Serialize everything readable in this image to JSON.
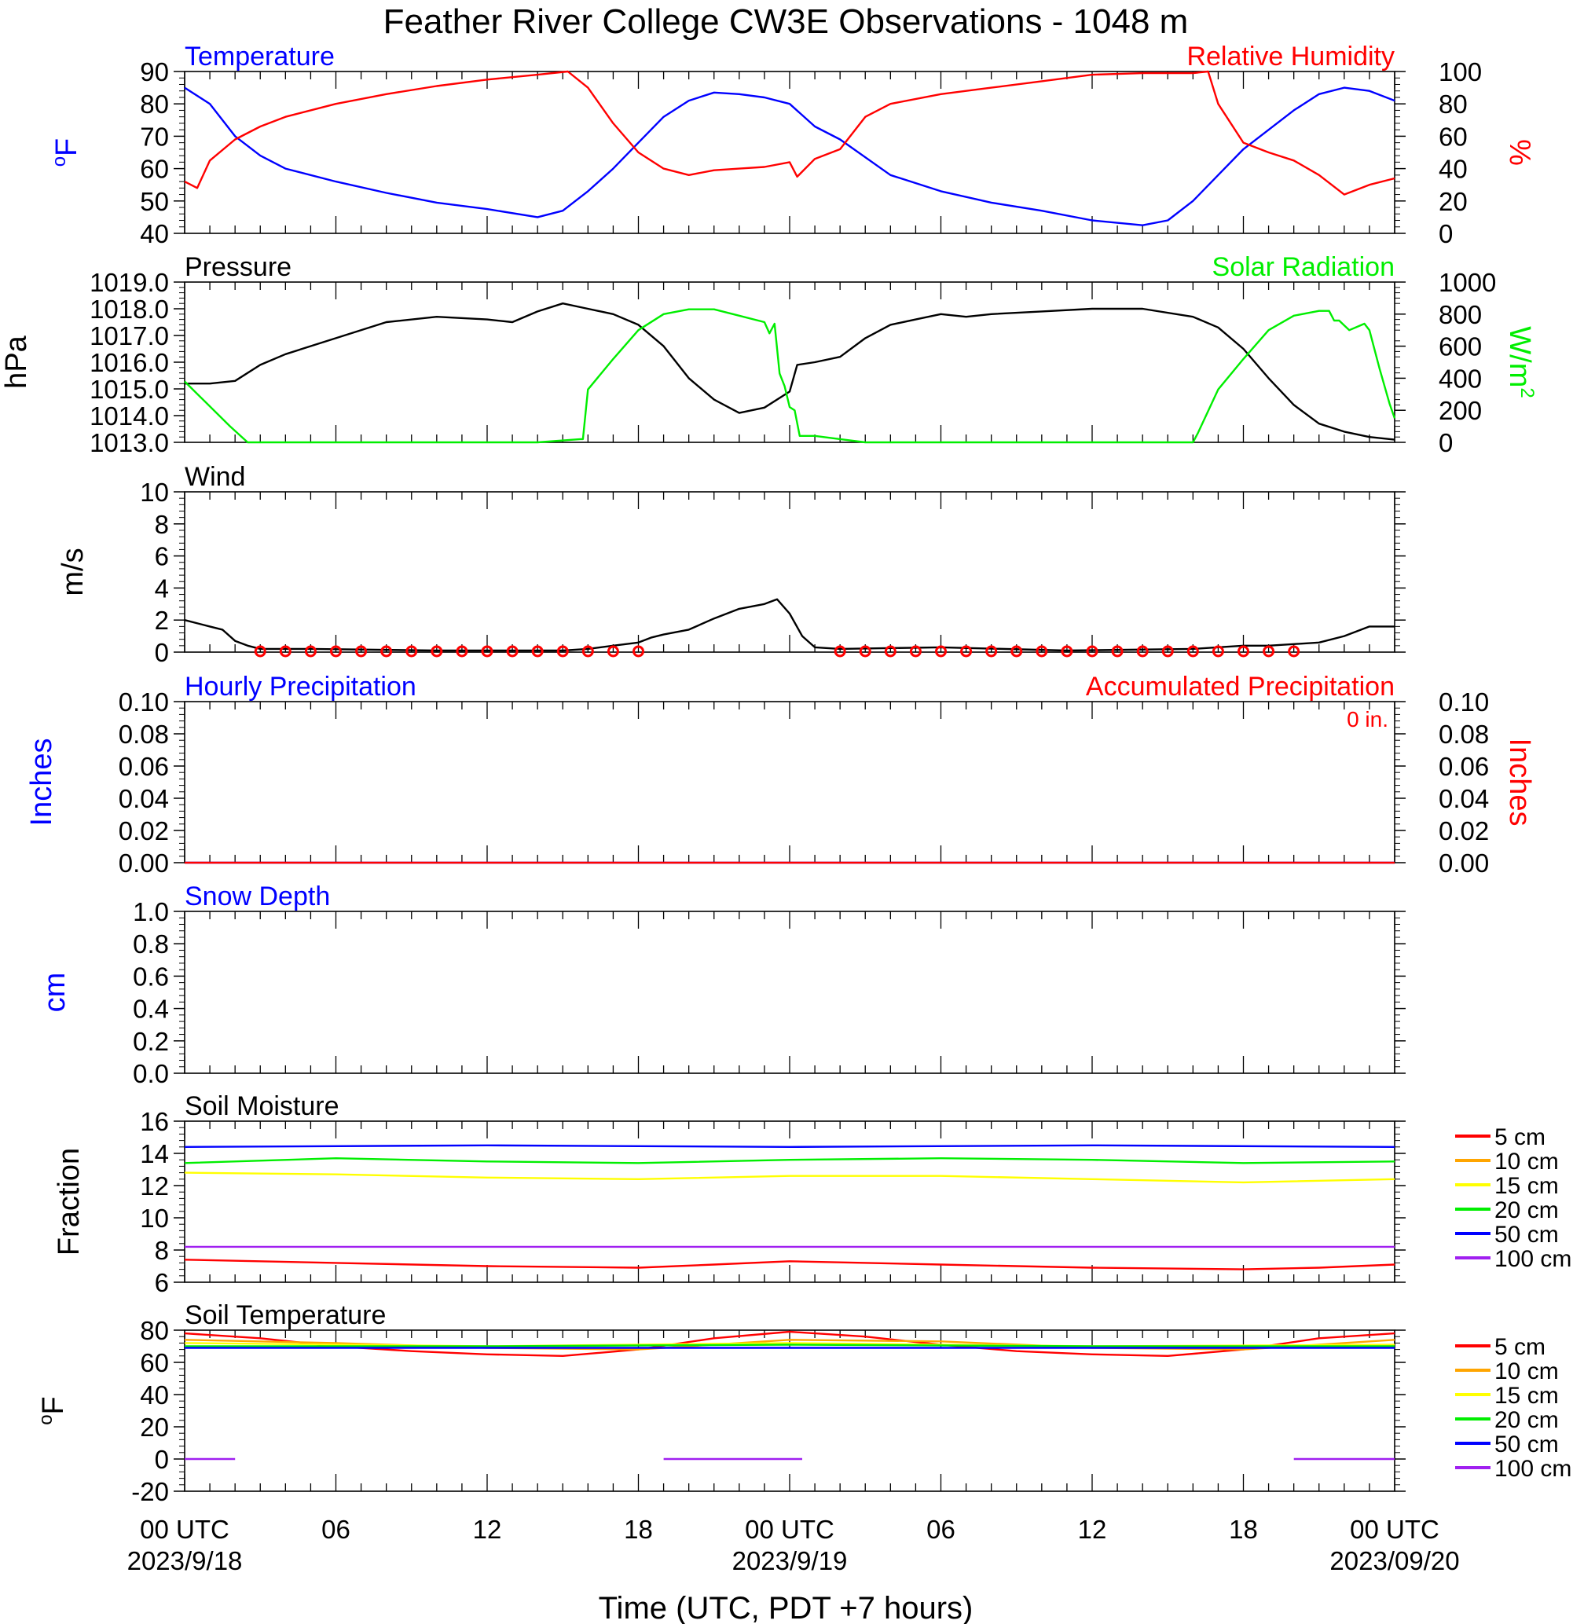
{
  "title": "Feather River College CW3E Observations - 1048 m",
  "x_axis": {
    "label": "Time (UTC, PDT +7 hours)",
    "range_hours": [
      0,
      48
    ],
    "ticks": [
      {
        "h": 0,
        "text": "00 UTC",
        "date": "2023/9/18"
      },
      {
        "h": 6,
        "text": "06",
        "date": ""
      },
      {
        "h": 12,
        "text": "12",
        "date": ""
      },
      {
        "h": 18,
        "text": "18",
        "date": ""
      },
      {
        "h": 24,
        "text": "00 UTC",
        "date": "2023/9/19"
      },
      {
        "h": 30,
        "text": "06",
        "date": ""
      },
      {
        "h": 36,
        "text": "12",
        "date": ""
      },
      {
        "h": 42,
        "text": "18",
        "date": ""
      },
      {
        "h": 48,
        "text": "00 UTC",
        "date": "2023/09/20"
      }
    ]
  },
  "colors": {
    "blue": "#0000ff",
    "red": "#ff0000",
    "green": "#00ee00",
    "black": "#000000",
    "orange": "#ffa500",
    "yellow": "#ffff00",
    "purple": "#a020f0"
  },
  "soil_legend": [
    {
      "label": "5 cm",
      "color": "#ff0000"
    },
    {
      "label": "10 cm",
      "color": "#ffa500"
    },
    {
      "label": "15 cm",
      "color": "#ffff00"
    },
    {
      "label": "20 cm",
      "color": "#00ee00"
    },
    {
      "label": "50 cm",
      "color": "#0000ff"
    },
    {
      "label": "100 cm",
      "color": "#a020f0"
    }
  ],
  "chart_data": [
    {
      "type": "line",
      "title_left": "Temperature",
      "title_right": "Relative Humidity",
      "ylabel_left": "oF",
      "ylabel_right": "%",
      "ylim_left": [
        40,
        90
      ],
      "ylim_right": [
        0,
        100
      ],
      "yticks_left": [
        "40",
        "50",
        "60",
        "70",
        "80",
        "90"
      ],
      "yticks_right": [
        "0",
        "20",
        "40",
        "60",
        "80",
        "100"
      ],
      "series": [
        {
          "name": "Temperature",
          "axis": "left",
          "color": "#0000ff",
          "x": [
            0,
            1,
            2,
            3,
            4,
            6,
            8,
            10,
            12,
            14,
            15,
            16,
            17,
            18,
            19,
            20,
            21,
            22,
            23,
            24,
            25,
            26,
            28,
            30,
            32,
            34,
            36,
            38,
            39,
            40,
            41,
            42,
            43,
            44,
            45,
            46,
            47,
            48
          ],
          "y": [
            85,
            80,
            70,
            64,
            60,
            56,
            52.5,
            49.5,
            47.5,
            45,
            47,
            53,
            60,
            68,
            76,
            81,
            83.5,
            83,
            82,
            80,
            73,
            69,
            58,
            53,
            49.5,
            47,
            44,
            42.5,
            44,
            50,
            58,
            66,
            72,
            78,
            83,
            85,
            84,
            81
          ]
        },
        {
          "name": "Relative Humidity",
          "axis": "right",
          "color": "#ff0000",
          "x": [
            0,
            0.5,
            1,
            2,
            3,
            4,
            6,
            8,
            10,
            12,
            14,
            15.2,
            16,
            17,
            18,
            19,
            20,
            21,
            22,
            23,
            24,
            24.3,
            25,
            26,
            27,
            28,
            30,
            32,
            34,
            36,
            38,
            39,
            40,
            40.6,
            41,
            42,
            43,
            44,
            45,
            46,
            47,
            48
          ],
          "y": [
            32,
            28,
            45,
            58,
            66,
            72,
            80,
            86,
            91,
            95,
            98,
            100,
            90,
            68,
            50,
            40,
            36,
            39,
            40,
            41,
            44,
            35,
            46,
            52,
            72,
            80,
            86,
            90,
            94,
            98,
            99,
            99,
            99,
            100,
            80,
            56,
            50,
            45,
            36,
            24,
            30,
            34
          ]
        }
      ]
    },
    {
      "type": "line",
      "title_left": "Pressure",
      "title_right": "Solar Radiation",
      "ylabel_left": "hPa",
      "ylabel_right": "W/m2",
      "ylim_left": [
        1013,
        1019
      ],
      "ylim_right": [
        0,
        1000
      ],
      "yticks_left": [
        "1013.0",
        "1014.0",
        "1015.0",
        "1016.0",
        "1017.0",
        "1018.0",
        "1019.0"
      ],
      "yticks_right": [
        "0",
        "200",
        "400",
        "600",
        "800",
        "1000"
      ],
      "series": [
        {
          "name": "Pressure",
          "axis": "left",
          "color": "#000000",
          "x": [
            0,
            1,
            2,
            3,
            4,
            6,
            8,
            10,
            12,
            13,
            14,
            15,
            16,
            17,
            18,
            19,
            20,
            21,
            22,
            23,
            24,
            24.3,
            25,
            26,
            27,
            28,
            29,
            30,
            31,
            32,
            34,
            36,
            38,
            40,
            41,
            42,
            43,
            44,
            45,
            46,
            47,
            48
          ],
          "y": [
            1015.2,
            1015.2,
            1015.3,
            1015.9,
            1016.3,
            1016.9,
            1017.5,
            1017.7,
            1017.6,
            1017.5,
            1017.9,
            1018.2,
            1018.0,
            1017.8,
            1017.4,
            1016.6,
            1015.4,
            1014.6,
            1014.1,
            1014.3,
            1014.9,
            1015.9,
            1016.0,
            1016.2,
            1016.9,
            1017.4,
            1017.6,
            1017.8,
            1017.7,
            1017.8,
            1017.9,
            1018.0,
            1018.0,
            1017.7,
            1017.3,
            1016.5,
            1015.4,
            1014.4,
            1013.7,
            1013.4,
            1013.2,
            1013.1
          ]
        },
        {
          "name": "Solar Radiation",
          "axis": "right",
          "color": "#00ee00",
          "x": [
            0,
            1.8,
            2.5,
            10,
            14,
            15.7,
            15.8,
            16,
            17,
            18,
            19,
            20,
            21,
            22,
            23,
            23.2,
            23.4,
            23.6,
            23.8,
            24,
            24.2,
            24.4,
            25,
            26,
            27,
            40,
            40.2,
            41,
            42,
            43,
            44,
            45,
            45.4,
            45.5,
            45.6,
            45.8,
            46,
            46.2,
            46.5,
            46.8,
            47,
            47.4,
            47.8,
            48
          ],
          "y": [
            380,
            100,
            0,
            0,
            0,
            20,
            20,
            330,
            520,
            700,
            800,
            830,
            830,
            790,
            750,
            680,
            740,
            430,
            350,
            220,
            200,
            40,
            40,
            20,
            0,
            0,
            60,
            330,
            520,
            700,
            790,
            820,
            820,
            790,
            760,
            760,
            730,
            700,
            720,
            740,
            700,
            460,
            240,
            150
          ]
        }
      ]
    },
    {
      "type": "line",
      "title_left": "Wind",
      "ylabel_left": "m/s",
      "ylim_left": [
        0,
        10
      ],
      "yticks_left": [
        "0",
        "2",
        "4",
        "6",
        "8",
        "10"
      ],
      "series": [
        {
          "name": "Wind Speed",
          "axis": "left",
          "color": "#000000",
          "x": [
            0,
            1,
            1.5,
            2,
            2.5,
            3,
            5,
            10,
            15,
            16,
            17,
            18,
            18.5,
            19,
            20,
            21,
            22,
            23,
            23.5,
            24,
            24.5,
            25,
            26,
            30,
            35,
            40,
            42,
            43,
            44,
            45,
            46,
            47,
            48
          ],
          "y": [
            2,
            1.6,
            1.4,
            0.7,
            0.4,
            0.2,
            0.2,
            0.1,
            0.1,
            0.2,
            0.4,
            0.6,
            0.9,
            1.1,
            1.4,
            2.1,
            2.7,
            3.0,
            3.3,
            2.4,
            1.0,
            0.3,
            0.2,
            0.3,
            0.1,
            0.2,
            0.4,
            0.4,
            0.5,
            0.6,
            1.0,
            1.6,
            1.6
          ]
        }
      ]
    },
    {
      "type": "line",
      "title_left": "Hourly Precipitation",
      "title_right": "Accumulated Precipitation",
      "annotation": "0 in.",
      "ylabel_left": "Inches",
      "ylabel_right": "Inches",
      "ylim_left": [
        0,
        0.1
      ],
      "ylim_right": [
        0,
        0.1
      ],
      "yticks_left": [
        "0.00",
        "0.02",
        "0.04",
        "0.06",
        "0.08",
        "0.10"
      ],
      "yticks_right": [
        "0.00",
        "0.02",
        "0.04",
        "0.06",
        "0.08",
        "0.10"
      ],
      "series": [
        {
          "name": "Hourly Precipitation",
          "axis": "left",
          "color": "#0000ff",
          "x": [
            0,
            48
          ],
          "y": [
            0,
            0
          ]
        },
        {
          "name": "Accumulated Precipitation",
          "axis": "left",
          "color": "#ff0000",
          "x": [
            0,
            48
          ],
          "y": [
            0,
            0
          ]
        }
      ]
    },
    {
      "type": "line",
      "title_left": "Snow Depth",
      "ylabel_left": "cm",
      "ylim_left": [
        0,
        1
      ],
      "yticks_left": [
        "0.0",
        "0.2",
        "0.4",
        "0.6",
        "0.8",
        "1.0"
      ],
      "series": []
    },
    {
      "type": "line",
      "title_left": "Soil Moisture",
      "ylabel_left": "Fraction",
      "ylim_left": [
        6,
        16
      ],
      "yticks_left": [
        "6",
        "8",
        "10",
        "12",
        "14",
        "16"
      ],
      "series": [
        {
          "name": "5 cm",
          "axis": "left",
          "color": "#ff0000",
          "x": [
            0,
            6,
            12,
            18,
            21,
            24,
            30,
            36,
            42,
            45,
            48
          ],
          "y": [
            7.4,
            7.2,
            7.0,
            6.9,
            7.1,
            7.3,
            7.1,
            6.9,
            6.8,
            6.9,
            7.1
          ]
        },
        {
          "name": "15 cm",
          "axis": "left",
          "color": "#ffff00",
          "x": [
            0,
            6,
            12,
            18,
            24,
            30,
            36,
            42,
            48
          ],
          "y": [
            12.8,
            12.7,
            12.5,
            12.4,
            12.6,
            12.6,
            12.4,
            12.2,
            12.4
          ]
        },
        {
          "name": "20 cm",
          "axis": "left",
          "color": "#00ee00",
          "x": [
            0,
            6,
            12,
            18,
            24,
            30,
            36,
            42,
            48
          ],
          "y": [
            13.4,
            13.7,
            13.5,
            13.4,
            13.6,
            13.7,
            13.6,
            13.4,
            13.5
          ]
        },
        {
          "name": "50 cm",
          "axis": "left",
          "color": "#0000ff",
          "x": [
            0,
            12,
            24,
            36,
            48
          ],
          "y": [
            14.4,
            14.5,
            14.4,
            14.5,
            14.4
          ]
        },
        {
          "name": "100 cm",
          "axis": "left",
          "color": "#a020f0",
          "x": [
            0,
            48
          ],
          "y": [
            8.2,
            8.2
          ]
        }
      ]
    },
    {
      "type": "line",
      "title_left": "Soil Temperature",
      "ylabel_left": "oF",
      "ylim_left": [
        -20,
        80
      ],
      "yticks_left": [
        "-20",
        "0",
        "20",
        "40",
        "60",
        "80"
      ],
      "series": [
        {
          "name": "5 cm",
          "axis": "left",
          "color": "#ff0000",
          "x": [
            0,
            3,
            6,
            9,
            12,
            15,
            18,
            21,
            24,
            27,
            30,
            33,
            36,
            39,
            42,
            45,
            48
          ],
          "y": [
            78,
            75,
            70,
            67,
            65,
            64,
            68,
            75,
            79,
            76,
            71,
            67,
            65,
            64,
            68,
            75,
            78
          ]
        },
        {
          "name": "10 cm",
          "axis": "left",
          "color": "#ffa500",
          "x": [
            0,
            6,
            12,
            18,
            24,
            30,
            36,
            42,
            48
          ],
          "y": [
            74,
            72,
            69,
            68,
            74,
            73,
            69,
            68,
            74
          ]
        },
        {
          "name": "15 cm",
          "axis": "left",
          "color": "#ffff00",
          "x": [
            0,
            12,
            24,
            36,
            48
          ],
          "y": [
            72,
            70,
            72,
            70,
            71
          ]
        },
        {
          "name": "20 cm",
          "axis": "left",
          "color": "#00ee00",
          "x": [
            0,
            12,
            24,
            36,
            48
          ],
          "y": [
            70,
            70,
            71,
            70,
            70
          ]
        },
        {
          "name": "50 cm",
          "axis": "left",
          "color": "#0000ff",
          "x": [
            0,
            48
          ],
          "y": [
            69,
            69
          ]
        },
        {
          "name": "100 cm",
          "axis": "left",
          "color": "#a020f0",
          "segments": [
            {
              "x": [
                0,
                2
              ],
              "y": [
                0,
                0
              ]
            },
            {
              "x": [
                19,
                24.5
              ],
              "y": [
                0,
                0
              ]
            },
            {
              "x": [
                44,
                48
              ],
              "y": [
                0,
                0
              ]
            }
          ]
        }
      ]
    }
  ]
}
